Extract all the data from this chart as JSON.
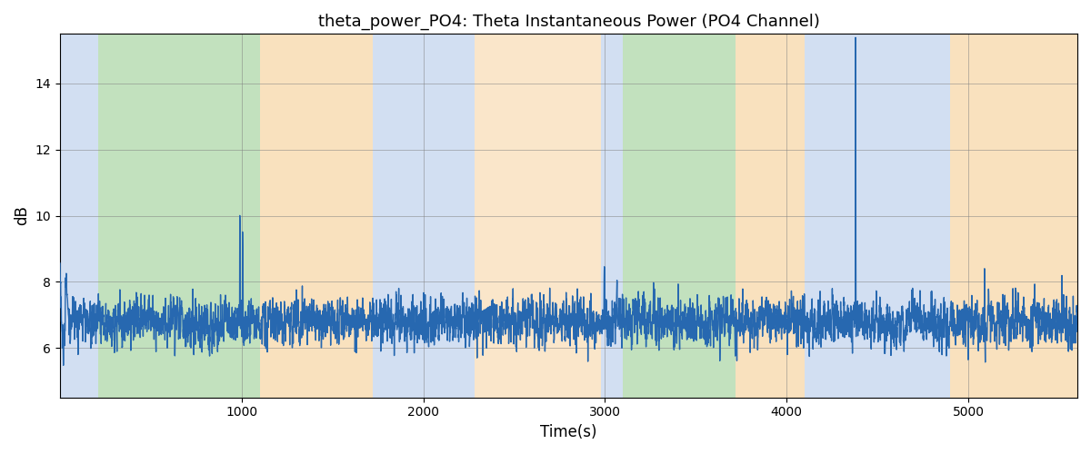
{
  "title": "theta_power_PO4: Theta Instantaneous Power (PO4 Channel)",
  "xlabel": "Time(s)",
  "ylabel": "dB",
  "xlim": [
    0,
    5600
  ],
  "ylim": [
    4.5,
    15.5
  ],
  "yticks": [
    6,
    8,
    10,
    12,
    14
  ],
  "xticks": [
    1000,
    2000,
    3000,
    4000,
    5000
  ],
  "line_color": "#2768b0",
  "line_width": 1.0,
  "regions": [
    {
      "xmin": 0,
      "xmax": 210,
      "color": "#aec6e8",
      "alpha": 0.55
    },
    {
      "xmin": 210,
      "xmax": 1100,
      "color": "#90c98a",
      "alpha": 0.55
    },
    {
      "xmin": 1100,
      "xmax": 1720,
      "color": "#f5c98a",
      "alpha": 0.55
    },
    {
      "xmin": 1720,
      "xmax": 2280,
      "color": "#aec6e8",
      "alpha": 0.55
    },
    {
      "xmin": 2280,
      "xmax": 2980,
      "color": "#f5c98a",
      "alpha": 0.45
    },
    {
      "xmin": 2980,
      "xmax": 3100,
      "color": "#aec6e8",
      "alpha": 0.55
    },
    {
      "xmin": 3100,
      "xmax": 3720,
      "color": "#90c98a",
      "alpha": 0.55
    },
    {
      "xmin": 3720,
      "xmax": 4100,
      "color": "#f5c98a",
      "alpha": 0.55
    },
    {
      "xmin": 4100,
      "xmax": 4900,
      "color": "#aec6e8",
      "alpha": 0.55
    },
    {
      "xmin": 4900,
      "xmax": 5600,
      "color": "#f5c98a",
      "alpha": 0.55
    }
  ],
  "figsize": [
    12.0,
    5.0
  ],
  "dpi": 100
}
